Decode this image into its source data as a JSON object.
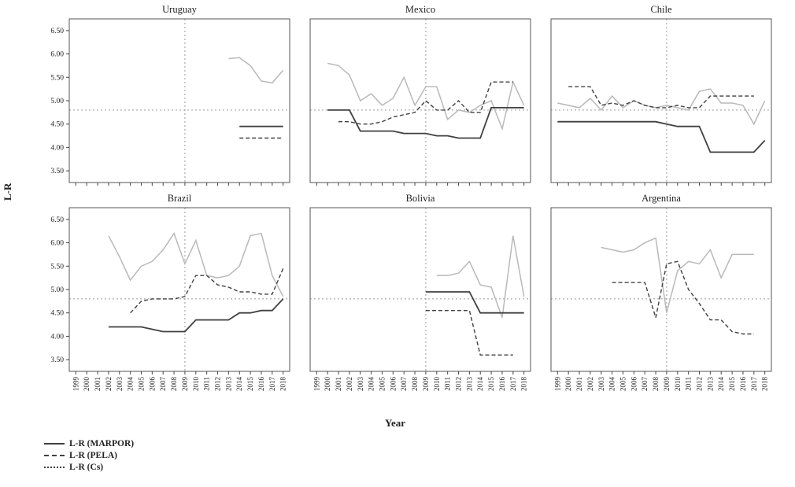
{
  "figure": {
    "ylabel": "L-R",
    "xlabel": "Year",
    "background": "#ffffff"
  },
  "colors": {
    "dark": "#404040",
    "gray": "#b9b9b9",
    "reference": "#9a9a9a",
    "axis": "#555555"
  },
  "legend": [
    {
      "label": "L-R (MARPOR)",
      "style": "solid"
    },
    {
      "label": "L-R (PELA)",
      "style": "dashed"
    },
    {
      "label": "L-R (Cs)",
      "style": "dotted"
    }
  ],
  "chart_data": {
    "type": "line",
    "layout": "2x3 small multiples",
    "xlabel": "Year",
    "ylabel": "L-R",
    "x": [
      1999,
      2000,
      2001,
      2002,
      2003,
      2004,
      2005,
      2006,
      2007,
      2008,
      2009,
      2010,
      2011,
      2012,
      2013,
      2014,
      2015,
      2016,
      2017,
      2018
    ],
    "ylim": [
      3.25,
      6.75
    ],
    "yticks": [
      3.5,
      4.0,
      4.5,
      5.0,
      5.5,
      6.0,
      6.5
    ],
    "reference_lines": {
      "horizontal_y": 4.8,
      "vertical_x": 2009
    },
    "series_keys": [
      "marpor",
      "pela",
      "cs"
    ],
    "panels": [
      {
        "title": "Uruguay",
        "series": {
          "marpor": [
            null,
            null,
            null,
            null,
            null,
            null,
            null,
            null,
            null,
            null,
            null,
            null,
            null,
            null,
            null,
            4.45,
            4.45,
            4.45,
            4.45,
            4.45
          ],
          "pela": [
            null,
            null,
            null,
            null,
            null,
            null,
            null,
            null,
            null,
            null,
            null,
            null,
            null,
            null,
            null,
            4.2,
            4.2,
            4.2,
            4.2,
            4.2
          ],
          "cs": [
            null,
            null,
            null,
            null,
            null,
            null,
            null,
            null,
            null,
            null,
            null,
            null,
            null,
            null,
            5.9,
            5.92,
            5.75,
            5.42,
            5.38,
            5.65
          ]
        }
      },
      {
        "title": "Mexico",
        "series": {
          "marpor": [
            null,
            4.8,
            4.8,
            4.8,
            4.35,
            4.35,
            4.35,
            4.35,
            4.3,
            4.3,
            4.3,
            4.25,
            4.25,
            4.2,
            4.2,
            4.2,
            4.85,
            4.85,
            4.85,
            4.85
          ],
          "pela": [
            null,
            null,
            4.55,
            4.55,
            4.5,
            4.5,
            4.55,
            4.65,
            4.7,
            4.75,
            5.0,
            4.8,
            4.8,
            5.0,
            4.75,
            4.75,
            5.4,
            5.4,
            5.4,
            null
          ],
          "cs": [
            null,
            5.8,
            5.75,
            5.55,
            5.0,
            5.15,
            4.9,
            5.05,
            5.5,
            4.9,
            5.3,
            5.3,
            4.6,
            4.8,
            4.75,
            4.9,
            5.0,
            4.4,
            5.4,
            4.9
          ]
        }
      },
      {
        "title": "Chile",
        "series": {
          "marpor": [
            4.55,
            4.55,
            4.55,
            4.55,
            4.55,
            4.55,
            4.55,
            4.55,
            4.55,
            4.55,
            4.5,
            4.45,
            4.45,
            4.45,
            3.9,
            3.9,
            3.9,
            3.9,
            3.9,
            4.15
          ],
          "pela": [
            null,
            5.3,
            5.3,
            5.3,
            4.9,
            4.95,
            4.9,
            5.0,
            4.9,
            4.85,
            4.85,
            4.9,
            4.85,
            4.85,
            5.1,
            5.1,
            5.1,
            5.1,
            5.1,
            null
          ],
          "cs": [
            4.95,
            4.9,
            4.85,
            5.05,
            4.8,
            5.1,
            4.85,
            5.0,
            4.9,
            4.85,
            4.9,
            4.85,
            4.8,
            5.2,
            5.25,
            4.95,
            4.95,
            4.9,
            4.5,
            5.0
          ]
        }
      },
      {
        "title": "Brazil",
        "series": {
          "marpor": [
            null,
            null,
            null,
            4.2,
            4.2,
            4.2,
            4.2,
            4.15,
            4.1,
            4.1,
            4.1,
            4.35,
            4.35,
            4.35,
            4.35,
            4.5,
            4.5,
            4.55,
            4.55,
            4.8
          ],
          "pela": [
            null,
            null,
            null,
            null,
            null,
            4.5,
            4.75,
            4.8,
            4.8,
            4.8,
            4.85,
            5.3,
            5.3,
            5.1,
            5.05,
            4.95,
            4.95,
            4.9,
            4.9,
            5.45
          ],
          "cs": [
            null,
            null,
            null,
            6.15,
            5.7,
            5.2,
            5.5,
            5.6,
            5.85,
            6.2,
            5.55,
            6.05,
            5.3,
            5.25,
            5.3,
            5.5,
            6.15,
            6.2,
            5.3,
            4.85
          ]
        }
      },
      {
        "title": "Bolivia",
        "series": {
          "marpor": [
            null,
            null,
            null,
            null,
            null,
            null,
            null,
            null,
            null,
            null,
            4.95,
            4.95,
            4.95,
            4.95,
            4.95,
            4.5,
            4.5,
            4.5,
            4.5,
            4.5
          ],
          "pela": [
            null,
            null,
            null,
            null,
            null,
            null,
            null,
            null,
            null,
            null,
            4.55,
            4.55,
            4.55,
            4.55,
            4.55,
            3.6,
            3.6,
            3.6,
            3.6,
            null
          ],
          "cs": [
            null,
            null,
            null,
            null,
            null,
            null,
            null,
            null,
            null,
            null,
            null,
            5.3,
            5.3,
            5.35,
            5.6,
            5.1,
            5.05,
            4.4,
            6.15,
            4.85
          ]
        }
      },
      {
        "title": "Argentina",
        "series": {
          "marpor": [
            null,
            null,
            null,
            null,
            null,
            null,
            null,
            null,
            null,
            null,
            null,
            null,
            null,
            null,
            null,
            null,
            null,
            null,
            null,
            null
          ],
          "pela": [
            null,
            null,
            null,
            null,
            null,
            5.15,
            5.15,
            5.15,
            5.15,
            4.4,
            5.55,
            5.6,
            5.0,
            4.7,
            4.35,
            4.35,
            4.1,
            4.05,
            4.05,
            null
          ],
          "cs": [
            null,
            null,
            null,
            null,
            5.9,
            5.85,
            5.8,
            5.85,
            6.0,
            6.1,
            4.5,
            5.4,
            5.6,
            5.55,
            5.85,
            5.25,
            5.75,
            5.75,
            5.75,
            null
          ]
        }
      }
    ]
  }
}
